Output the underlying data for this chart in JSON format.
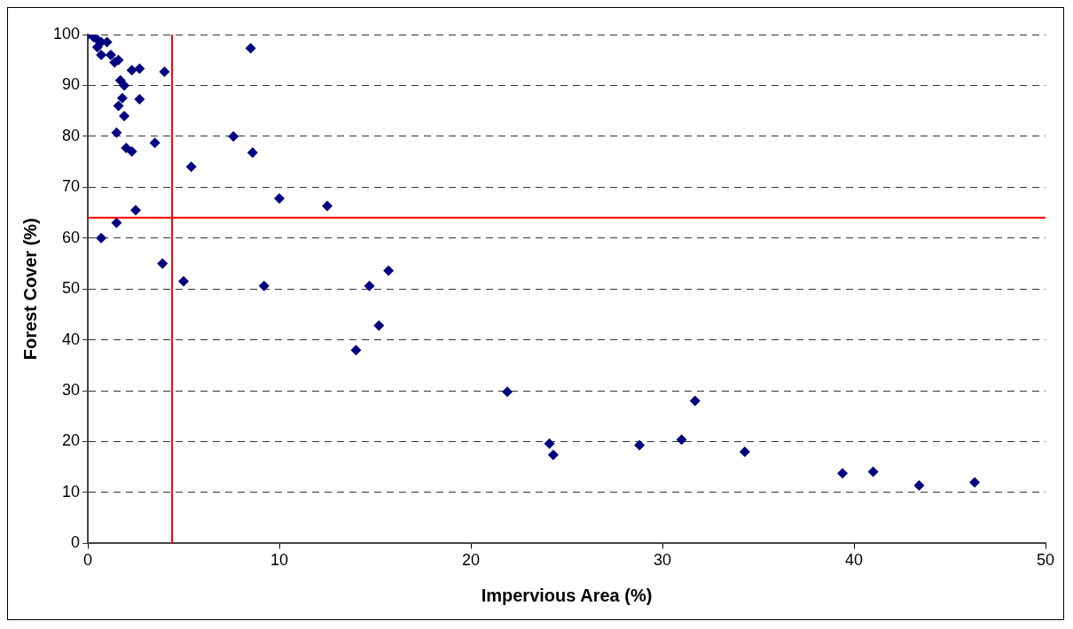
{
  "chart_data": {
    "type": "scatter",
    "xlabel": "Impervious Area (%)",
    "ylabel": "Forest Cover (%)",
    "xlim": [
      0,
      50
    ],
    "xticks": [
      0,
      10,
      20,
      30,
      40,
      50
    ],
    "ylim": [
      0,
      100
    ],
    "yticks": [
      0,
      10,
      20,
      30,
      40,
      50,
      60,
      70,
      80,
      90,
      100
    ],
    "grid": "y",
    "legend": false,
    "marker": "diamond",
    "series": [
      {
        "color": "#000080",
        "x": [
          0,
          0.3,
          0.5,
          0.7,
          1,
          0.5,
          0.7,
          1.2,
          1.4,
          1.6,
          2.3,
          2.7,
          4,
          1.7,
          1.9,
          1.6,
          1.8,
          2.7,
          1.9,
          1.5,
          2,
          2.3,
          3.5,
          8.5,
          5.4,
          7.6,
          8.6,
          10,
          12.5,
          2.5,
          1.5,
          0.7,
          3.9,
          5,
          9.2,
          14.7,
          15.7,
          15.2,
          14,
          21.9,
          24.1,
          24.3,
          28.8,
          31,
          31.7,
          34.3,
          39.4,
          41,
          43.4,
          46.3
        ],
        "values": [
          100,
          99.5,
          99,
          98.5,
          98.5,
          97.5,
          96,
          96,
          94.5,
          95,
          93,
          93.3,
          92.7,
          91,
          90,
          86,
          87.5,
          87.3,
          84,
          80.7,
          77.7,
          77,
          78.7,
          97.3,
          74,
          80,
          76.8,
          67.8,
          66.3,
          65.5,
          63,
          60,
          55,
          51.5,
          50.6,
          50.6,
          53.6,
          42.8,
          38,
          29.8,
          19.6,
          17.4,
          19.3,
          20.4,
          28,
          18,
          13.8,
          14.1,
          11.4,
          12
        ]
      }
    ],
    "ref_lines": [
      {
        "axis": "x",
        "value": 4.4,
        "color": "#ff0000"
      },
      {
        "axis": "y",
        "value": 64,
        "color": "#ff0000"
      }
    ]
  }
}
